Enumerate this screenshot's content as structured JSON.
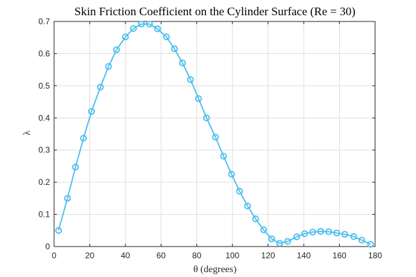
{
  "chart_data": {
    "type": "line",
    "title": "Skin Friction Coefficient on the Cylinder Surface (Re = 30)",
    "xlabel": "θ (degrees)",
    "ylabel": "λ",
    "xlim": [
      0,
      180
    ],
    "ylim": [
      0,
      0.7
    ],
    "xticks": [
      0,
      20,
      40,
      60,
      80,
      100,
      120,
      140,
      160,
      180
    ],
    "yticks": [
      0,
      0.1,
      0.2,
      0.3,
      0.4,
      0.5,
      0.6,
      0.7
    ],
    "grid": true,
    "marker": "circle",
    "color": "#4DBEEE",
    "series": [
      {
        "x": [
          2.5,
          7.5,
          12,
          16.5,
          21,
          26,
          30.5,
          35,
          40,
          44.5,
          49,
          53.5,
          58,
          63,
          67.5,
          72,
          76.5,
          81,
          85.5,
          90.5,
          95,
          99.5,
          104,
          108.5,
          113,
          117.5,
          122,
          126.5,
          131,
          136,
          140.5,
          145,
          149.5,
          154,
          158.5,
          163,
          168,
          172.5,
          177.5
        ],
        "y": [
          0.05,
          0.15,
          0.247,
          0.337,
          0.42,
          0.496,
          0.56,
          0.612,
          0.652,
          0.678,
          0.692,
          0.692,
          0.677,
          0.652,
          0.615,
          0.571,
          0.519,
          0.46,
          0.4,
          0.34,
          0.281,
          0.225,
          0.172,
          0.126,
          0.086,
          0.052,
          0.024,
          0.01,
          0.016,
          0.03,
          0.04,
          0.045,
          0.047,
          0.046,
          0.042,
          0.038,
          0.031,
          0.02,
          0.007
        ]
      }
    ]
  }
}
